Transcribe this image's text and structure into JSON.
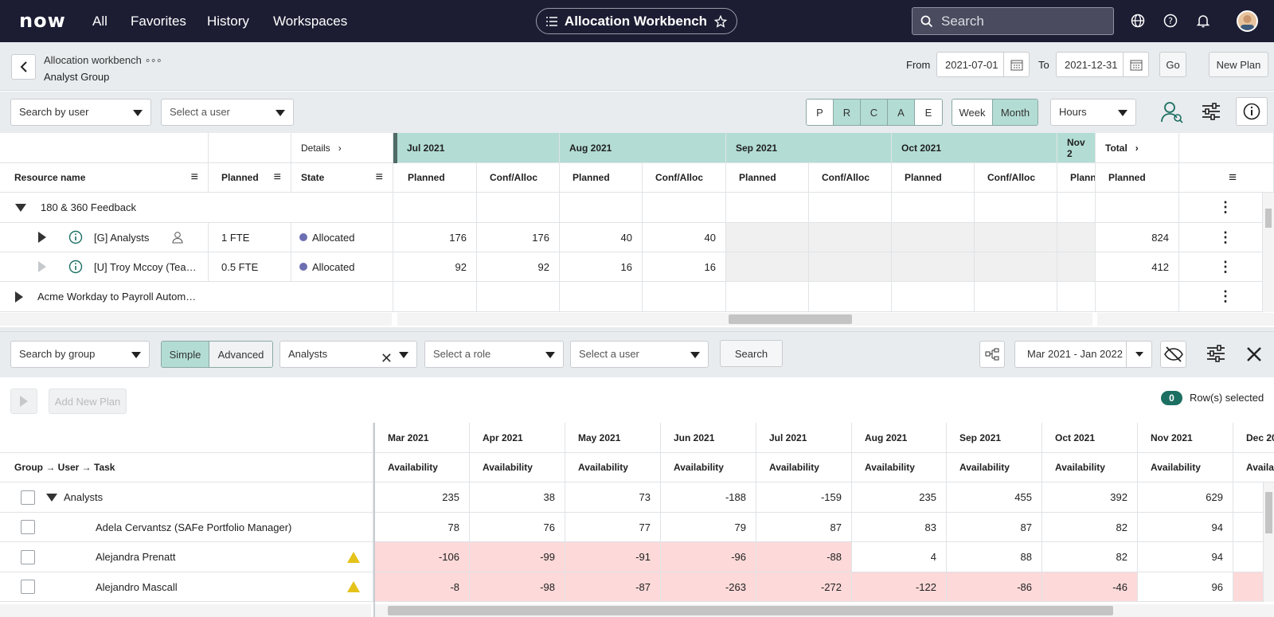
{
  "topnav": {
    "logo": "now",
    "links": [
      "All",
      "Favorites",
      "History",
      "Workspaces"
    ],
    "app_title": "Allocation Workbench",
    "search_placeholder": "Search"
  },
  "header": {
    "breadcrumb": "Allocation workbench",
    "subtitle": "Analyst Group",
    "from_label": "From",
    "from_value": "2021-07-01",
    "to_label": "To",
    "to_value": "2021-12-31",
    "go_label": "Go",
    "new_plan_label": "New Plan"
  },
  "toolbar1": {
    "search_by": "Search by user",
    "user_placeholder": "Select a user",
    "states": [
      "P",
      "R",
      "C",
      "A",
      "E"
    ],
    "states_active": [
      false,
      true,
      true,
      true,
      false
    ],
    "week_label": "Week",
    "month_label": "Month",
    "unit": "Hours"
  },
  "grid1": {
    "details_label": "Details",
    "total_label": "Total",
    "columns": {
      "resource": "Resource name",
      "planned": "Planned",
      "state": "State",
      "planned2": "Planned",
      "conf": "Conf/Alloc",
      "total_planned": "Planned"
    },
    "months": [
      "Jul 2021",
      "Aug 2021",
      "Sep 2021",
      "Oct 2021",
      "Nov 2"
    ],
    "month_cols": [
      "Planned",
      "Conf/Alloc",
      "Planned",
      "Conf/Alloc",
      "Planned",
      "Conf/Alloc",
      "Planned",
      "Conf/Alloc",
      "Plann"
    ],
    "rows": [
      {
        "name": "180 & 360 Feedback",
        "planned": "",
        "state": "",
        "values": [
          "",
          "",
          "",
          "",
          "",
          "",
          "",
          "",
          ""
        ],
        "total": ""
      },
      {
        "name": "[G] Analysts",
        "planned": "1 FTE",
        "state": "Allocated",
        "values": [
          "176",
          "176",
          "40",
          "40",
          "",
          "",
          "",
          "",
          ""
        ],
        "total": "824"
      },
      {
        "name": "[U] Troy Mccoy (Tea…",
        "planned": "0.5 FTE",
        "state": "Allocated",
        "values": [
          "92",
          "92",
          "16",
          "16",
          "",
          "",
          "",
          "",
          ""
        ],
        "total": "412"
      },
      {
        "name": "Acme Workday to Payroll Autom…",
        "planned": "",
        "state": "",
        "values": [
          "",
          "",
          "",
          "",
          "",
          "",
          "",
          "",
          ""
        ],
        "total": ""
      }
    ]
  },
  "toolbar2": {
    "search_by": "Search by group",
    "simple_label": "Simple",
    "advanced_label": "Advanced",
    "group_value": "Analysts",
    "role_placeholder": "Select a role",
    "user_placeholder": "Select a user",
    "search_label": "Search",
    "date_range": "Mar 2021 - Jan 2022"
  },
  "toolbar3": {
    "add_plan_label": "Add New Plan",
    "selected_count": "0",
    "selected_label": "Row(s) selected"
  },
  "grid2": {
    "hier_label": "Group → User → Task",
    "months": [
      "Mar 2021",
      "Apr 2021",
      "May 2021",
      "Jun 2021",
      "Jul 2021",
      "Aug 2021",
      "Sep 2021",
      "Oct 2021",
      "Nov 2021",
      "Dec 20"
    ],
    "sub_label": "Availability",
    "sub_labels": [
      "Availability",
      "Availability",
      "Availability",
      "Availability",
      "Availability",
      "Availability",
      "Availability",
      "Availability",
      "Availability",
      "Availabi"
    ],
    "rows": [
      {
        "name": "Analysts",
        "values": [
          "235",
          "38",
          "73",
          "-188",
          "-159",
          "235",
          "455",
          "392",
          "629"
        ]
      },
      {
        "name": "Adela Cervantsz (SAFe Portfolio Manager)",
        "values": [
          "78",
          "76",
          "77",
          "79",
          "87",
          "83",
          "87",
          "82",
          "94"
        ]
      },
      {
        "name": "Alejandra Prenatt",
        "values": [
          "-106",
          "-99",
          "-91",
          "-96",
          "-88",
          "4",
          "88",
          "82",
          "94"
        ]
      },
      {
        "name": "Alejandro Mascall",
        "values": [
          "-8",
          "-98",
          "-87",
          "-263",
          "-272",
          "-122",
          "-86",
          "-46",
          "96"
        ]
      }
    ]
  }
}
